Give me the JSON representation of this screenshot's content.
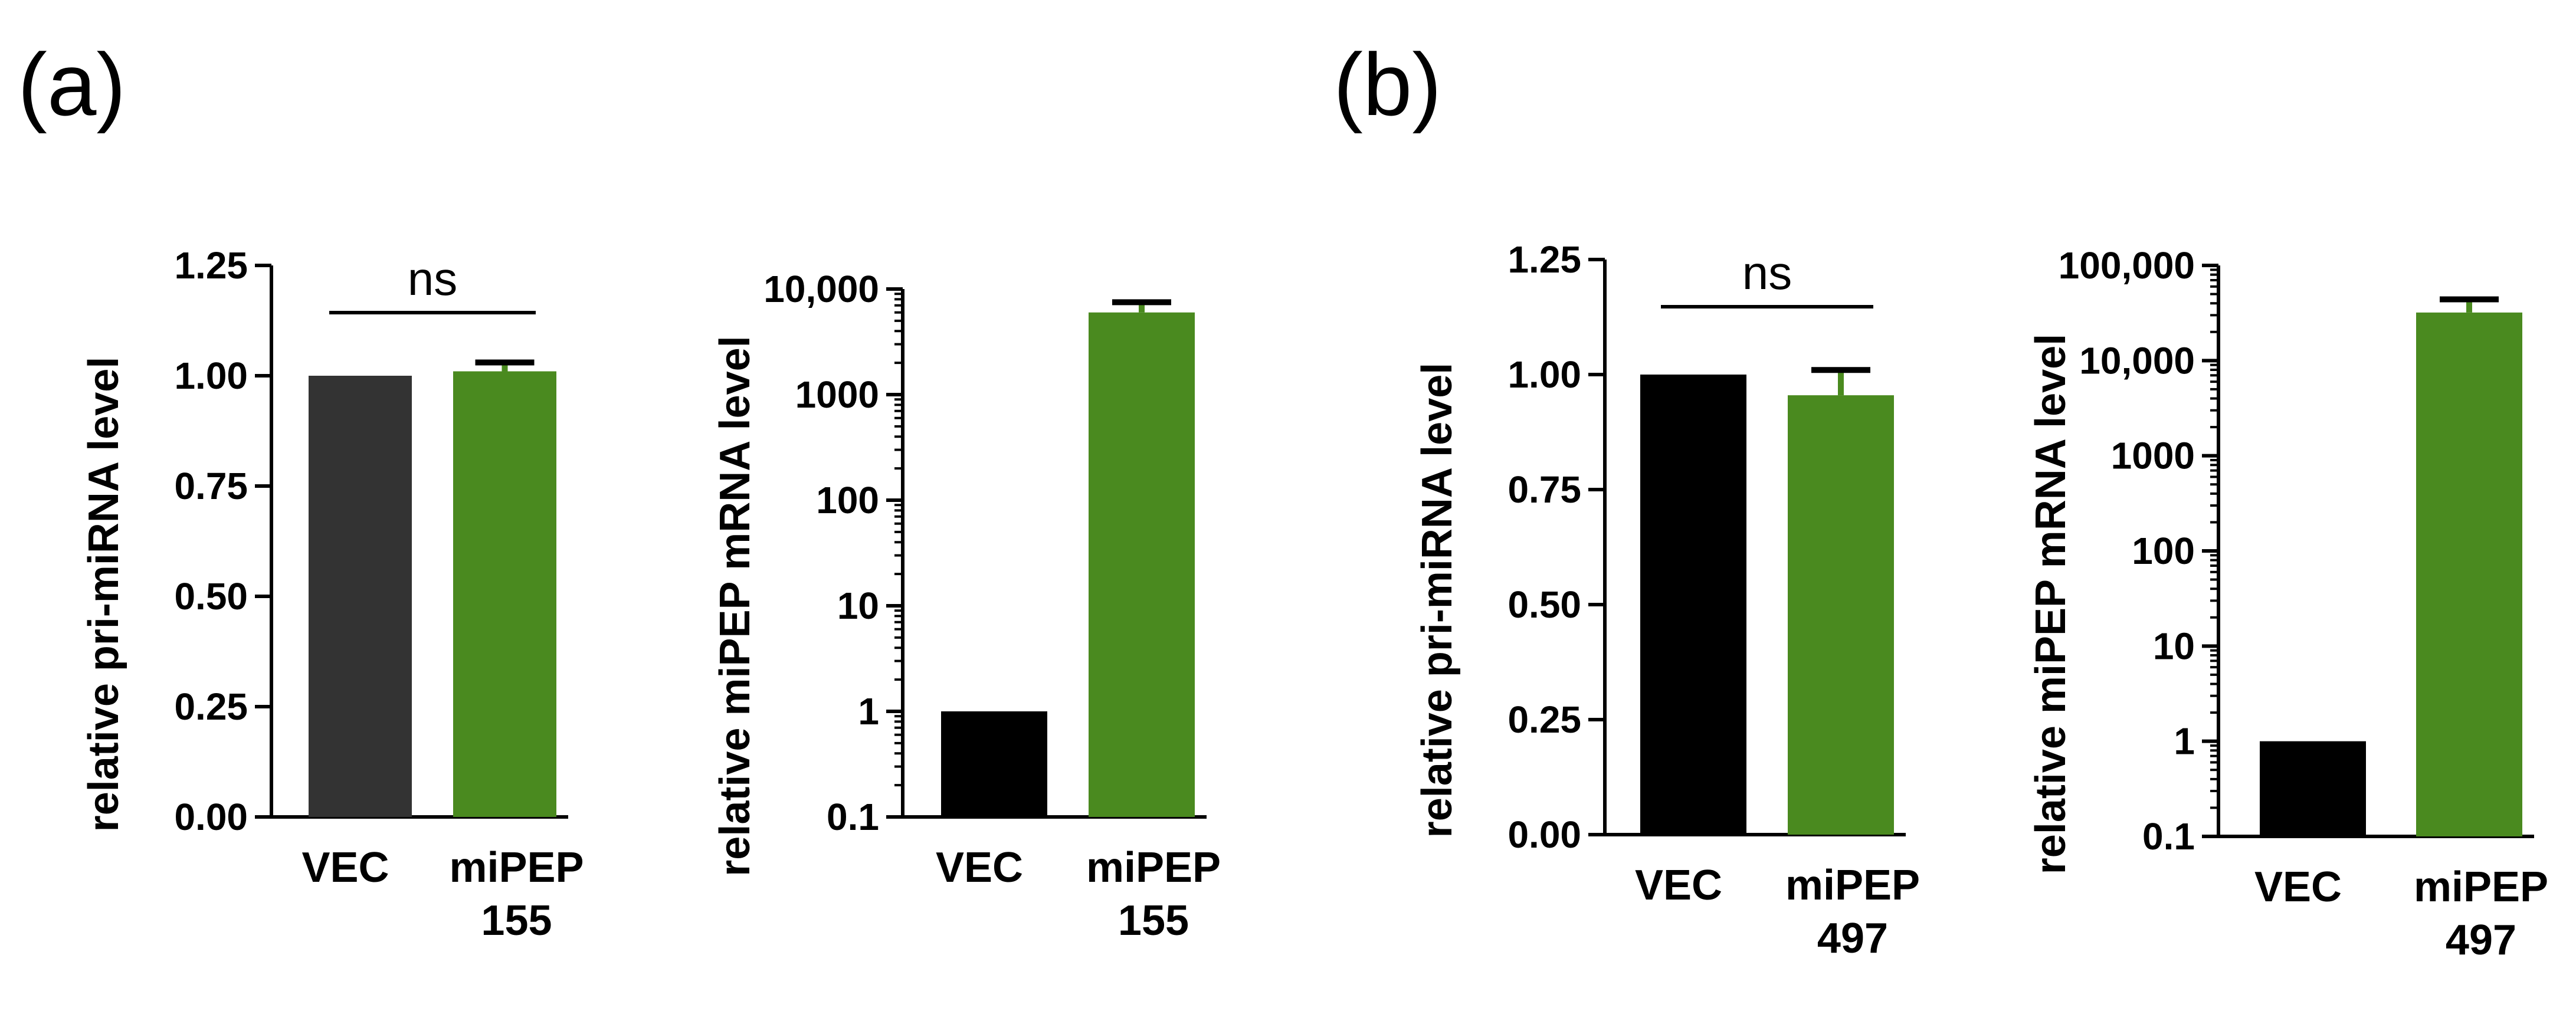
{
  "figure": {
    "panels": [
      {
        "label": "(a)"
      },
      {
        "label": "(b)"
      }
    ]
  },
  "chart_data": [
    {
      "type": "bar",
      "scale": "linear",
      "panel": "(a)",
      "ylabel": "relative pri-miRNA level",
      "ylim": [
        0,
        1.25
      ],
      "yticks": [
        "0.00",
        "0.25",
        "0.50",
        "0.75",
        "1.00",
        "1.25"
      ],
      "categories": [
        {
          "line1": "VEC",
          "line2": ""
        },
        {
          "line1": "miPEP",
          "line2": "155"
        }
      ],
      "values": [
        1.0,
        1.01
      ],
      "errors": [
        0,
        0.02
      ],
      "colors": [
        "#333333",
        "#4a8a1f"
      ],
      "annotation": {
        "text": "ns"
      }
    },
    {
      "type": "bar",
      "scale": "log",
      "panel": "(a)",
      "ylabel": "relative miPEP mRNA level",
      "ylim": [
        0.1,
        10000
      ],
      "yticks": [
        "0.1",
        "1",
        "10",
        "100",
        "1000",
        "10,000"
      ],
      "categories": [
        {
          "line1": "VEC",
          "line2": ""
        },
        {
          "line1": "miPEP",
          "line2": "155"
        }
      ],
      "values": [
        1,
        6000
      ],
      "errors": [
        0,
        1500
      ],
      "colors": [
        "#000000",
        "#4a8a1f"
      ],
      "annotation": null
    },
    {
      "type": "bar",
      "scale": "linear",
      "panel": "(b)",
      "ylabel": "relative pri-miRNA level",
      "ylim": [
        0,
        1.25
      ],
      "yticks": [
        "0.00",
        "0.25",
        "0.50",
        "0.75",
        "1.00",
        "1.25"
      ],
      "categories": [
        {
          "line1": "VEC",
          "line2": ""
        },
        {
          "line1": "miPEP",
          "line2": "497"
        }
      ],
      "values": [
        1.0,
        0.955
      ],
      "errors": [
        0,
        0.055
      ],
      "colors": [
        "#000000",
        "#4a8a1f"
      ],
      "annotation": {
        "text": "ns"
      }
    },
    {
      "type": "bar",
      "scale": "log",
      "panel": "(b)",
      "ylabel": "relative miPEP mRNA level",
      "ylim": [
        0.1,
        100000
      ],
      "yticks": [
        "0.1",
        "1",
        "10",
        "100",
        "1000",
        "10,000",
        "100,000"
      ],
      "categories": [
        {
          "line1": "VEC",
          "line2": ""
        },
        {
          "line1": "miPEP",
          "line2": "497"
        }
      ],
      "values": [
        1,
        32000
      ],
      "errors": [
        0,
        12000
      ],
      "colors": [
        "#000000",
        "#4a8a1f"
      ],
      "annotation": null
    }
  ]
}
